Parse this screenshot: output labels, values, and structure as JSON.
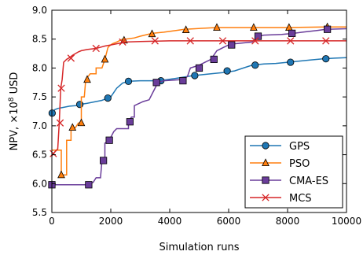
{
  "chart_data": {
    "type": "line",
    "title": "",
    "xlabel": "Simulation runs",
    "ylabel_main": "NPV, ×10",
    "ylabel_exp": "8",
    "ylabel_unit": " USD",
    "xlim": [
      0,
      10000
    ],
    "ylim": [
      5.5,
      9.0
    ],
    "xticks": [
      0,
      2000,
      4000,
      6000,
      8000,
      10000
    ],
    "yticks": [
      5.5,
      6.0,
      6.5,
      7.0,
      7.5,
      8.0,
      8.5,
      9.0
    ],
    "grid": false,
    "legend_position": "lower-right",
    "series": [
      {
        "name": "GPS",
        "color": "#1f77b4",
        "marker": "circle",
        "x": [
          0,
          20,
          60,
          100,
          200,
          400,
          600,
          800,
          950,
          1200,
          1500,
          1700,
          1900,
          2000,
          2200,
          2400,
          2600,
          3000,
          3500,
          3800,
          4200,
          4800,
          5400,
          5800,
          6200,
          6500,
          6800,
          7200,
          7600,
          8000,
          8400,
          8800,
          9200,
          9600,
          10000
        ],
        "y": [
          7.22,
          7.22,
          7.26,
          7.28,
          7.3,
          7.32,
          7.34,
          7.35,
          7.37,
          7.39,
          7.42,
          7.44,
          7.48,
          7.5,
          7.65,
          7.74,
          7.77,
          7.78,
          7.78,
          7.79,
          7.82,
          7.87,
          7.9,
          7.92,
          7.95,
          8.0,
          8.05,
          8.07,
          8.08,
          8.1,
          8.12,
          8.14,
          8.16,
          8.17,
          8.18
        ],
        "marker_x": [
          10,
          950,
          1900,
          2600,
          3700,
          4850,
          5950,
          6900,
          8100,
          9300
        ],
        "marker_y": [
          7.22,
          7.37,
          7.48,
          7.77,
          7.78,
          7.87,
          7.95,
          8.05,
          8.1,
          8.16
        ]
      },
      {
        "name": "PSO",
        "color": "#ff7f0e",
        "marker": "triangle",
        "x": [
          0,
          250,
          320,
          320,
          400,
          500,
          500,
          650,
          650,
          800,
          900,
          1000,
          1000,
          1100,
          1150,
          1150,
          1300,
          1500,
          1500,
          1700,
          1800,
          1800,
          1900,
          1950,
          2000,
          2050,
          2200,
          2400,
          2500,
          2800,
          3000,
          3400,
          3800,
          4500,
          5600,
          6000,
          7000,
          8000,
          9300,
          10000
        ],
        "y": [
          6.58,
          6.58,
          6.58,
          6.15,
          6.15,
          6.15,
          6.75,
          6.75,
          6.97,
          6.97,
          7.05,
          7.05,
          7.5,
          7.5,
          7.8,
          7.8,
          7.9,
          7.9,
          8.0,
          8.0,
          8.15,
          8.15,
          8.35,
          8.38,
          8.4,
          8.42,
          8.45,
          8.5,
          8.5,
          8.52,
          8.55,
          8.6,
          8.62,
          8.67,
          8.7,
          8.7,
          8.7,
          8.7,
          8.71,
          8.71
        ],
        "marker_x": [
          320,
          700,
          1000,
          1200,
          1800,
          2450,
          3400,
          4550,
          5600,
          6850,
          8050,
          9350
        ],
        "marker_y": [
          6.15,
          6.97,
          7.05,
          7.8,
          8.15,
          8.48,
          8.59,
          8.66,
          8.7,
          8.7,
          8.7,
          8.71
        ]
      },
      {
        "name": "CMA-ES",
        "color": "#6a3d9a",
        "marker": "square",
        "x": [
          0,
          1200,
          1400,
          1500,
          1650,
          1700,
          1800,
          1800,
          1900,
          1950,
          2000,
          2100,
          2200,
          2400,
          2600,
          2600,
          2700,
          2800,
          2800,
          3100,
          3300,
          3400,
          3500,
          3600,
          3800,
          4400,
          4600,
          4700,
          5000,
          5200,
          5400,
          5600,
          5800,
          6000,
          6200,
          6800,
          7000,
          7200,
          7800,
          8200,
          8500,
          9000,
          9300,
          10000
        ],
        "y": [
          5.98,
          5.98,
          6.02,
          6.1,
          6.1,
          6.4,
          6.4,
          6.7,
          6.73,
          6.75,
          6.8,
          6.9,
          6.95,
          6.95,
          6.95,
          7.07,
          7.15,
          7.15,
          7.35,
          7.42,
          7.45,
          7.55,
          7.65,
          7.75,
          7.78,
          7.8,
          7.85,
          8.0,
          8.05,
          8.1,
          8.15,
          8.3,
          8.35,
          8.4,
          8.42,
          8.45,
          8.55,
          8.57,
          8.58,
          8.6,
          8.62,
          8.65,
          8.67,
          8.68
        ],
        "marker_x": [
          0,
          1250,
          1750,
          1950,
          2650,
          3550,
          4450,
          5000,
          5500,
          6100,
          7000,
          8150,
          9350
        ],
        "marker_y": [
          5.98,
          5.98,
          6.4,
          6.75,
          7.07,
          7.75,
          7.78,
          8.0,
          8.15,
          8.4,
          8.55,
          8.6,
          8.67
        ]
      },
      {
        "name": "MCS",
        "color": "#d62728",
        "marker": "x",
        "x": [
          0,
          100,
          200,
          250,
          300,
          350,
          400,
          500,
          600,
          700,
          800,
          900,
          1000,
          1200,
          1500,
          1800,
          2000,
          2200,
          2500,
          3000,
          4000,
          5000,
          6000,
          7000,
          8000,
          9000,
          10000
        ],
        "y": [
          6.48,
          6.55,
          6.6,
          7.05,
          7.65,
          7.8,
          8.1,
          8.15,
          8.18,
          8.22,
          8.25,
          8.28,
          8.3,
          8.32,
          8.34,
          8.38,
          8.4,
          8.42,
          8.45,
          8.46,
          8.47,
          8.47,
          8.47,
          8.47,
          8.47,
          8.47,
          8.47
        ],
        "marker_x": [
          50,
          280,
          320,
          650,
          1500,
          2400,
          3500,
          4700,
          5800,
          6900,
          8100,
          9300
        ],
        "marker_y": [
          6.52,
          7.05,
          7.65,
          8.17,
          8.34,
          8.45,
          8.47,
          8.47,
          8.47,
          8.47,
          8.47,
          8.47
        ]
      }
    ]
  }
}
